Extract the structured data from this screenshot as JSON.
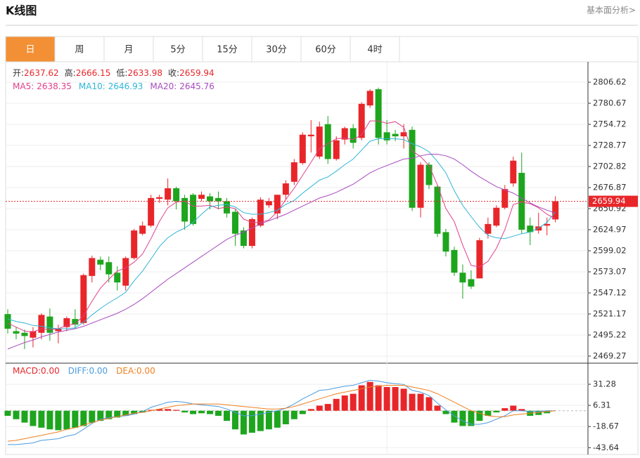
{
  "header": {
    "title": "K线图",
    "link": "基本面分析>"
  },
  "tabs": {
    "items": [
      "日",
      "周",
      "月",
      "5分",
      "15分",
      "30分",
      "60分",
      "4时"
    ],
    "active": 0
  },
  "chart_data": [
    {
      "type": "candlestick",
      "ohlc_labels": {
        "open": "开:",
        "high": "高:",
        "low": "低:",
        "close": "收:"
      },
      "up_color": "#e8262a",
      "down_color": "#1ea51e",
      "open": [
        2521,
        2500,
        2498,
        2492,
        2498,
        2518,
        2500,
        2505,
        2515,
        2510,
        2568,
        2588,
        2585,
        2572,
        2556,
        2590,
        2620,
        2630,
        2663,
        2662,
        2676,
        2664,
        2668,
        2663,
        2666,
        2664,
        2660,
        2647,
        2624,
        2605,
        2630,
        2655,
        2645,
        2668,
        2684,
        2707,
        2740,
        2715,
        2755,
        2712,
        2736,
        2750,
        2738,
        2778,
        2798,
        2745,
        2743,
        2740,
        2748,
        2652,
        2705,
        2678,
        2622,
        2600,
        2572,
        2564,
        2565,
        2620,
        2630,
        2652,
        2682,
        2695,
        2630,
        2624,
        2630,
        2637.62
      ],
      "high": [
        2527,
        2505,
        2502,
        2505,
        2522,
        2528,
        2508,
        2518,
        2527,
        2571,
        2593,
        2592,
        2592,
        2580,
        2592,
        2626,
        2635,
        2668,
        2668,
        2688,
        2678,
        2668,
        2670,
        2672,
        2670,
        2672,
        2664,
        2650,
        2628,
        2640,
        2665,
        2664,
        2668,
        2686,
        2712,
        2745,
        2760,
        2758,
        2765,
        2740,
        2752,
        2755,
        2782,
        2798,
        2800,
        2760,
        2748,
        2755,
        2752,
        2708,
        2708,
        2680,
        2626,
        2604,
        2582,
        2575,
        2615,
        2640,
        2655,
        2680,
        2715,
        2720,
        2640,
        2646,
        2640,
        2666.15
      ],
      "low": [
        2497,
        2490,
        2478,
        2480,
        2490,
        2488,
        2485,
        2500,
        2503,
        2508,
        2560,
        2575,
        2560,
        2550,
        2550,
        2588,
        2618,
        2628,
        2658,
        2655,
        2650,
        2625,
        2630,
        2660,
        2650,
        2650,
        2640,
        2605,
        2602,
        2602,
        2628,
        2652,
        2638,
        2662,
        2680,
        2705,
        2720,
        2712,
        2706,
        2710,
        2730,
        2725,
        2735,
        2775,
        2730,
        2730,
        2734,
        2725,
        2648,
        2640,
        2675,
        2616,
        2592,
        2568,
        2540,
        2552,
        2565,
        2614,
        2628,
        2650,
        2678,
        2620,
        2606,
        2620,
        2618,
        2633.98
      ],
      "close": [
        2503,
        2497,
        2494,
        2500,
        2520,
        2498,
        2503,
        2516,
        2508,
        2569,
        2590,
        2582,
        2570,
        2560,
        2590,
        2624,
        2630,
        2664,
        2665,
        2676,
        2660,
        2635,
        2632,
        2668,
        2660,
        2660,
        2645,
        2620,
        2605,
        2638,
        2662,
        2660,
        2668,
        2682,
        2708,
        2742,
        2742,
        2752,
        2712,
        2735,
        2750,
        2732,
        2780,
        2796,
        2738,
        2735,
        2740,
        2745,
        2652,
        2705,
        2680,
        2620,
        2598,
        2572,
        2560,
        2555,
        2612,
        2632,
        2652,
        2675,
        2710,
        2625,
        2622,
        2629,
        2632,
        2659.94
      ],
      "series": [
        {
          "name": "MA5:",
          "color": "#e0408a",
          "values": [
            2510,
            2505,
            2500,
            2499,
            2503,
            2502,
            2503,
            2507,
            2509,
            2519,
            2537,
            2553,
            2564,
            2574,
            2578,
            2585,
            2595,
            2614,
            2635,
            2652,
            2659,
            2660,
            2654,
            2654,
            2655,
            2651,
            2653,
            2651,
            2638,
            2634,
            2634,
            2637,
            2647,
            2662,
            2676,
            2692,
            2708,
            2725,
            2731,
            2737,
            2738,
            2736,
            2742,
            2759,
            2759,
            2756,
            2758,
            2751,
            2722,
            2715,
            2704,
            2680,
            2651,
            2635,
            2606,
            2581,
            2579,
            2586,
            2602,
            2625,
            2656,
            2659,
            2657,
            2652,
            2644,
            2638.35
          ]
        },
        {
          "name": "MA10:",
          "color": "#2fb6d6",
          "values": [
            2515,
            2512,
            2510,
            2507,
            2506,
            2504,
            2503,
            2503,
            2504,
            2511,
            2520,
            2528,
            2535,
            2541,
            2548,
            2562,
            2574,
            2589,
            2604,
            2615,
            2622,
            2627,
            2634,
            2644,
            2653,
            2655,
            2656,
            2653,
            2646,
            2644,
            2644,
            2646,
            2649,
            2656,
            2661,
            2670,
            2678,
            2686,
            2690,
            2697,
            2705,
            2712,
            2723,
            2734,
            2737,
            2737,
            2737,
            2736,
            2731,
            2727,
            2721,
            2709,
            2695,
            2673,
            2655,
            2641,
            2628,
            2618,
            2615,
            2614,
            2617,
            2620,
            2622,
            2627,
            2634,
            2646.93
          ]
        },
        {
          "name": "MA20:",
          "color": "#a94bbf",
          "values": [
            2478,
            2482,
            2486,
            2489,
            2493,
            2496,
            2499,
            2501,
            2503,
            2506,
            2510,
            2514,
            2518,
            2522,
            2527,
            2533,
            2540,
            2548,
            2556,
            2564,
            2571,
            2578,
            2585,
            2592,
            2599,
            2606,
            2613,
            2618,
            2622,
            2627,
            2632,
            2636,
            2640,
            2644,
            2649,
            2654,
            2659,
            2664,
            2667,
            2671,
            2676,
            2681,
            2688,
            2695,
            2700,
            2704,
            2708,
            2712,
            2713,
            2716,
            2718,
            2718,
            2716,
            2712,
            2705,
            2697,
            2690,
            2684,
            2678,
            2674,
            2670,
            2664,
            2658,
            2653,
            2649,
            2645.76
          ]
        }
      ],
      "ylim": [
        2462.3,
        2828.3
      ],
      "yticks": [
        2806.62,
        2780.67,
        2754.72,
        2728.77,
        2702.82,
        2676.87,
        2650.92,
        2624.97,
        2599.02,
        2573.07,
        2547.12,
        2521.17,
        2495.22,
        2469.27
      ],
      "grid": true,
      "last_price_line": true
    },
    {
      "type": "macd",
      "name": "MACD:",
      "readout": "0.00",
      "color": "#e8262a",
      "down_color": "#1ea51e",
      "values": [
        -6,
        -10,
        -14,
        -18,
        -20,
        -22,
        -23,
        -22,
        -20,
        -18,
        -14,
        -12,
        -10,
        -8,
        -6,
        -4,
        -2,
        1,
        2,
        2,
        1,
        -2,
        -4,
        -3,
        -4,
        -6,
        -12,
        -22,
        -28,
        -26,
        -24,
        -22,
        -20,
        -16,
        -10,
        -4,
        2,
        6,
        8,
        14,
        18,
        20,
        30,
        34,
        30,
        28,
        28,
        26,
        20,
        20,
        16,
        6,
        -4,
        -14,
        -18,
        -18,
        -12,
        -6,
        -2,
        3,
        6,
        2,
        -6,
        -5,
        -3,
        0
      ],
      "series": [
        {
          "name": "DIFF:",
          "readout": "0.00",
          "color": "#4a9be0",
          "values": [
            -40,
            -40,
            -39,
            -38,
            -35,
            -34,
            -33,
            -30,
            -28,
            -22,
            -15,
            -10,
            -8,
            -7,
            -6,
            -4,
            -1,
            4,
            7,
            10,
            11,
            10,
            8,
            7,
            6,
            5,
            2,
            -2,
            -6,
            -6,
            -4,
            -2,
            0,
            3,
            8,
            14,
            19,
            24,
            25,
            27,
            29,
            30,
            33,
            36,
            35,
            33,
            32,
            31,
            24,
            22,
            18,
            9,
            1,
            -6,
            -12,
            -16,
            -16,
            -14,
            -10,
            -6,
            0,
            0,
            -1,
            -1,
            0,
            0
          ]
        },
        {
          "name": "DEA:",
          "readout": "0.00",
          "color": "#f08020",
          "values": [
            -36,
            -35,
            -33,
            -31,
            -29,
            -27,
            -25,
            -22,
            -20,
            -17,
            -14,
            -11,
            -9,
            -7,
            -5,
            -3,
            -2,
            0,
            2,
            4,
            6,
            7,
            8,
            8,
            8,
            8,
            7,
            6,
            5,
            4,
            3,
            2,
            2,
            3,
            5,
            8,
            11,
            14,
            17,
            20,
            22,
            24,
            26,
            28,
            29,
            30,
            30,
            30,
            28,
            26,
            24,
            20,
            15,
            10,
            5,
            0,
            -3,
            -6,
            -7,
            -7,
            -5,
            -4,
            -3,
            -2,
            -1,
            0
          ]
        }
      ],
      "ylim": [
        -50,
        52
      ],
      "yticks": [
        31.28,
        6.31,
        -18.67,
        -43.64
      ],
      "grid": true
    }
  ]
}
